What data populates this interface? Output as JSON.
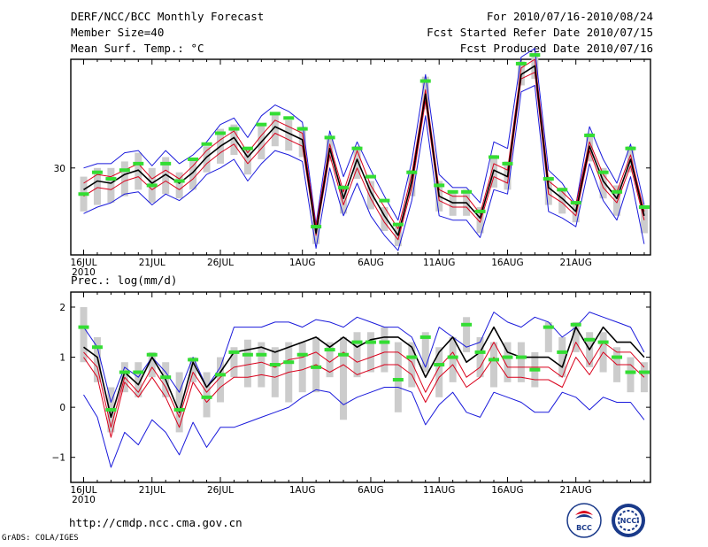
{
  "header": {
    "title": "DERF/NCC/BCC Monthly Forecast",
    "member_size": "Member Size=40",
    "variable": "Mean Surf. Temp.: °C",
    "forecast_period": "For 2010/07/16-2010/08/24",
    "started_date": "Fcst Started Refer Date 2010/07/15",
    "produced_date": "Fcst Produced Date 2010/07/16"
  },
  "footer": {
    "url": "http://cmdp.ncc.cma.gov.cn",
    "grads_credit": "GrADS: COLA/IGES",
    "logo_bcc": "BCC",
    "logo_ncc": "NCC"
  },
  "colors": {
    "ensemble_envelope": "#1a1adb",
    "ensemble_mean": "#000000",
    "mean_range": "#d9001b",
    "observed_marker": "#33dd33",
    "spread_bar": "#cccccc"
  },
  "chart_data": [
    {
      "type": "line",
      "title": "Mean Surf. Temp.: °C",
      "x_labels": [
        "16JUL",
        "21JUL",
        "26JUL",
        "1AUG",
        "6AUG",
        "11AUG",
        "16AUG",
        "21AUG"
      ],
      "x_year_label": "2010",
      "ylim": [
        26.0,
        35.0
      ],
      "y_ticks": [
        30
      ],
      "y_tick_labels": [
        "30"
      ],
      "series": [
        {
          "name": "ensemble max",
          "values": [
            30.0,
            30.2,
            30.2,
            30.7,
            30.8,
            30.1,
            30.8,
            30.2,
            30.6,
            31.2,
            32.0,
            32.3,
            31.4,
            32.4,
            32.9,
            32.6,
            32.1,
            27.4,
            31.7,
            29.6,
            31.2,
            29.9,
            28.7,
            27.6,
            30.3,
            34.3,
            29.7,
            29.1,
            29.1,
            28.4,
            31.2,
            30.9,
            35.1,
            35.5,
            29.9,
            29.3,
            28.3,
            31.9,
            30.4,
            29.3,
            31.1,
            28.3
          ]
        },
        {
          "name": "ensemble mean upper",
          "values": [
            29.3,
            29.7,
            29.6,
            29.9,
            30.2,
            29.5,
            29.9,
            29.5,
            30.1,
            30.8,
            31.3,
            31.7,
            30.7,
            31.5,
            32.2,
            31.9,
            31.6,
            27.3,
            31.1,
            28.9,
            30.8,
            29.2,
            28.2,
            27.2,
            29.7,
            33.6,
            29.0,
            28.7,
            28.7,
            27.9,
            30.2,
            29.9,
            34.6,
            35.0,
            29.4,
            28.9,
            28.3,
            31.2,
            29.7,
            28.9,
            30.6,
            28.0
          ]
        },
        {
          "name": "ensemble mean",
          "values": [
            29.0,
            29.4,
            29.3,
            29.7,
            29.9,
            29.3,
            29.7,
            29.3,
            29.8,
            30.5,
            31.0,
            31.4,
            30.5,
            31.2,
            31.9,
            31.6,
            31.3,
            27.0,
            30.9,
            28.6,
            30.4,
            28.9,
            27.8,
            26.9,
            29.4,
            33.4,
            28.7,
            28.4,
            28.4,
            27.7,
            29.9,
            29.6,
            34.3,
            34.7,
            29.1,
            28.6,
            28.0,
            31.0,
            29.4,
            28.6,
            30.4,
            27.8
          ]
        },
        {
          "name": "ensemble mean lower",
          "values": [
            28.7,
            29.1,
            29.0,
            29.4,
            29.6,
            29.0,
            29.4,
            29.0,
            29.5,
            30.2,
            30.7,
            31.1,
            30.2,
            30.9,
            31.6,
            31.3,
            31.0,
            26.9,
            30.6,
            28.3,
            30.0,
            28.6,
            27.5,
            26.7,
            29.1,
            33.1,
            28.5,
            28.2,
            28.2,
            27.5,
            29.6,
            29.3,
            34.1,
            34.4,
            28.8,
            28.4,
            27.8,
            30.8,
            29.1,
            28.4,
            30.1,
            27.6
          ]
        },
        {
          "name": "ensemble min",
          "values": [
            27.9,
            28.2,
            28.4,
            28.8,
            28.9,
            28.3,
            28.8,
            28.5,
            29.0,
            29.7,
            30.0,
            30.4,
            29.4,
            30.2,
            30.8,
            30.6,
            30.3,
            26.3,
            30.0,
            27.8,
            29.3,
            27.8,
            26.9,
            26.2,
            28.5,
            32.4,
            27.8,
            27.6,
            27.6,
            26.8,
            29.0,
            28.8,
            33.5,
            33.8,
            28.0,
            27.7,
            27.3,
            30.2,
            28.5,
            27.6,
            29.6,
            26.5
          ]
        },
        {
          "name": "observed",
          "values": [
            28.8,
            29.8,
            29.5,
            29.9,
            30.2,
            29.2,
            30.2,
            29.4,
            30.4,
            31.1,
            31.6,
            31.8,
            30.9,
            32.0,
            32.5,
            32.3,
            31.8,
            27.3,
            31.4,
            29.1,
            30.9,
            29.6,
            28.5,
            27.4,
            29.8,
            34.0,
            29.2,
            28.9,
            28.9,
            28.0,
            30.5,
            30.2,
            34.8,
            35.2,
            29.5,
            29.0,
            28.4,
            31.5,
            29.8,
            28.9,
            30.9,
            28.2
          ]
        },
        {
          "name": "spread high",
          "values": [
            29.6,
            30.0,
            30.0,
            30.3,
            30.7,
            30.0,
            30.5,
            29.8,
            30.4,
            31.0,
            31.8,
            32.0,
            30.9,
            32.0,
            32.5,
            32.2,
            31.9,
            27.6,
            31.4,
            29.2,
            31.0,
            29.4,
            28.2,
            27.3,
            29.9,
            34.2,
            29.4,
            28.9,
            29.0,
            28.2,
            30.6,
            30.3,
            34.9,
            35.3,
            29.6,
            29.1,
            28.4,
            31.6,
            30.0,
            29.2,
            31.0,
            28.2
          ]
        },
        {
          "name": "spread low",
          "values": [
            28.0,
            28.3,
            28.4,
            28.7,
            29.0,
            28.4,
            28.8,
            28.6,
            29.0,
            29.8,
            30.2,
            30.6,
            29.7,
            30.4,
            31.0,
            30.8,
            30.5,
            26.5,
            30.3,
            27.9,
            29.5,
            28.1,
            27.1,
            26.4,
            28.7,
            32.7,
            28.0,
            27.8,
            27.8,
            27.0,
            29.1,
            29.0,
            33.8,
            34.1,
            28.3,
            27.9,
            27.5,
            30.3,
            28.6,
            27.8,
            29.8,
            27.0
          ]
        }
      ]
    },
    {
      "type": "line",
      "title": "Prec.: log(mm/d)",
      "x_labels": [
        "16JUL",
        "21JUL",
        "26JUL",
        "1AUG",
        "6AUG",
        "11AUG",
        "16AUG",
        "21AUG"
      ],
      "x_year_label": "2010",
      "ylim": [
        -1.5,
        2.3
      ],
      "y_ticks": [
        2,
        1,
        0,
        -1
      ],
      "y_tick_labels": [
        "2",
        "1",
        "0",
        "−1"
      ],
      "series": [
        {
          "name": "ensemble max",
          "values": [
            1.6,
            1.2,
            0.1,
            0.8,
            0.6,
            1.0,
            0.7,
            0.3,
            1.0,
            0.4,
            0.8,
            1.6,
            1.6,
            1.6,
            1.7,
            1.7,
            1.6,
            1.75,
            1.7,
            1.6,
            1.8,
            1.7,
            1.6,
            1.6,
            1.4,
            0.8,
            1.6,
            1.4,
            1.2,
            1.3,
            1.9,
            1.7,
            1.6,
            1.8,
            1.7,
            1.4,
            1.6,
            1.9,
            1.8,
            1.7,
            1.6,
            1.1
          ]
        },
        {
          "name": "ensemble mean",
          "values": [
            1.2,
            1.0,
            -0.2,
            0.7,
            0.45,
            1.0,
            0.55,
            -0.1,
            0.9,
            0.4,
            0.7,
            1.1,
            1.15,
            1.2,
            1.1,
            1.2,
            1.3,
            1.4,
            1.2,
            1.4,
            1.2,
            1.35,
            1.4,
            1.4,
            1.2,
            0.6,
            1.1,
            1.4,
            0.9,
            1.1,
            1.6,
            1.1,
            1.0,
            1.0,
            1.0,
            0.8,
            1.6,
            1.15,
            1.6,
            1.3,
            1.3,
            1.0
          ]
        },
        {
          "name": "ensemble mean lower",
          "values": [
            1.1,
            0.8,
            -0.4,
            0.6,
            0.3,
            0.8,
            0.4,
            -0.2,
            0.7,
            0.3,
            0.6,
            0.8,
            0.85,
            0.9,
            0.8,
            0.95,
            1.0,
            1.1,
            0.9,
            1.1,
            0.9,
            1.0,
            1.1,
            1.1,
            0.9,
            0.3,
            0.8,
            1.1,
            0.6,
            0.8,
            1.3,
            0.8,
            0.8,
            0.8,
            0.8,
            0.6,
            1.3,
            0.85,
            1.3,
            1.1,
            1.1,
            0.8
          ]
        },
        {
          "name": "ensemble mean low",
          "values": [
            1.0,
            0.6,
            -0.6,
            0.5,
            0.2,
            0.6,
            0.2,
            -0.4,
            0.5,
            0.1,
            0.4,
            0.6,
            0.6,
            0.65,
            0.6,
            0.7,
            0.75,
            0.85,
            0.7,
            0.85,
            0.65,
            0.75,
            0.85,
            0.85,
            0.65,
            0.1,
            0.6,
            0.85,
            0.4,
            0.6,
            1.0,
            0.6,
            0.6,
            0.55,
            0.55,
            0.4,
            1.0,
            0.65,
            1.1,
            0.85,
            0.85,
            0.6
          ]
        },
        {
          "name": "ensemble min",
          "values": [
            0.25,
            -0.2,
            -1.2,
            -0.5,
            -0.75,
            -0.25,
            -0.5,
            -0.95,
            -0.3,
            -0.8,
            -0.4,
            -0.4,
            -0.3,
            -0.2,
            -0.1,
            0.0,
            0.2,
            0.35,
            0.3,
            0.05,
            0.2,
            0.3,
            0.4,
            0.4,
            0.3,
            -0.35,
            0.05,
            0.3,
            -0.1,
            -0.2,
            0.3,
            0.2,
            0.1,
            -0.1,
            -0.1,
            0.3,
            0.2,
            -0.05,
            0.2,
            0.1,
            0.1,
            -0.25
          ]
        },
        {
          "name": "observed",
          "values": [
            1.6,
            1.2,
            -0.05,
            0.7,
            0.7,
            1.05,
            0.6,
            -0.05,
            0.95,
            0.2,
            0.65,
            1.1,
            1.05,
            1.05,
            0.85,
            0.9,
            1.05,
            0.8,
            1.15,
            1.05,
            1.3,
            1.3,
            1.3,
            0.55,
            1.0,
            1.4,
            0.85,
            1.0,
            1.65,
            1.1,
            0.95,
            1.0,
            1.0,
            0.75,
            1.6,
            1.1,
            1.65,
            1.35,
            1.3,
            1.0,
            0.7,
            0.7
          ]
        },
        {
          "name": "spread high",
          "values": [
            2.0,
            1.4,
            0.4,
            0.9,
            0.9,
            1.1,
            0.9,
            0.7,
            1.0,
            0.7,
            1.0,
            1.2,
            1.35,
            1.3,
            1.2,
            1.3,
            1.3,
            1.4,
            1.3,
            1.4,
            1.5,
            1.5,
            1.6,
            1.3,
            1.3,
            1.5,
            1.2,
            1.4,
            1.8,
            1.4,
            1.3,
            1.3,
            1.3,
            1.1,
            1.7,
            1.4,
            1.7,
            1.5,
            1.5,
            1.2,
            1.0,
            0.9
          ]
        },
        {
          "name": "spread low",
          "values": [
            0.9,
            0.5,
            -0.5,
            0.3,
            0.2,
            0.6,
            0.2,
            -0.5,
            0.5,
            -0.2,
            0.1,
            0.6,
            0.4,
            0.4,
            0.2,
            0.1,
            0.3,
            0.3,
            0.6,
            -0.25,
            0.6,
            0.7,
            0.7,
            -0.1,
            0.4,
            0.7,
            0.2,
            0.5,
            1.1,
            0.6,
            0.4,
            0.5,
            0.5,
            0.4,
            1.1,
            0.6,
            1.1,
            0.8,
            0.7,
            0.5,
            0.3,
            0.3
          ]
        }
      ]
    }
  ]
}
